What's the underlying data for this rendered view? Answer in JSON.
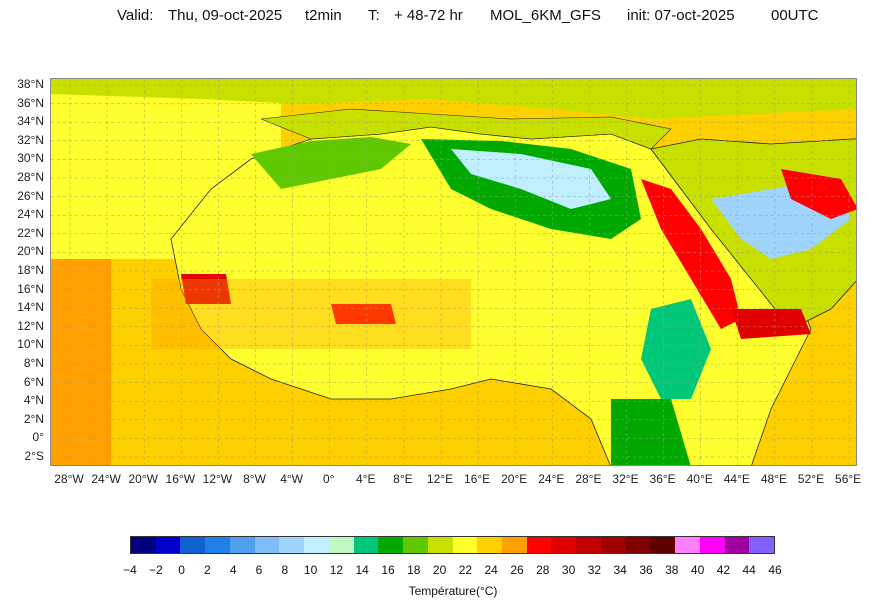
{
  "header": {
    "valid_label": "Valid:",
    "valid_date": "Thu, 09-oct-2025",
    "variable": "t2min",
    "t_label": "T:",
    "t_range": "+ 48-72 hr",
    "model": "MOL_6KM_GFS",
    "init": "init: 07-oct-2025",
    "run": "00UTC"
  },
  "lat_labels": [
    "38°N",
    "36°N",
    "34°N",
    "32°N",
    "30°N",
    "28°N",
    "26°N",
    "24°N",
    "22°N",
    "20°N",
    "18°N",
    "16°N",
    "14°N",
    "12°N",
    "10°N",
    "8°N",
    "6°N",
    "4°N",
    "2°N",
    "0°",
    "2°S"
  ],
  "lon_labels": [
    "28°W",
    "24°W",
    "20°W",
    "16°W",
    "12°W",
    "8°W",
    "4°W",
    "0°",
    "4°E",
    "8°E",
    "12°E",
    "16°E",
    "20°E",
    "24°E",
    "28°E",
    "32°E",
    "36°E",
    "40°E",
    "44°E",
    "48°E",
    "52°E",
    "56°E"
  ],
  "colorbar": {
    "title": "Température(°C)",
    "ticks": [
      "−4",
      "−2",
      "0",
      "2",
      "4",
      "6",
      "8",
      "10",
      "12",
      "14",
      "16",
      "18",
      "20",
      "22",
      "24",
      "26",
      "28",
      "30",
      "32",
      "34",
      "36",
      "38",
      "40",
      "42",
      "44",
      "46"
    ],
    "colors": [
      "#000080",
      "#0000c8",
      "#1060d0",
      "#2080e8",
      "#50a0f0",
      "#80bcf8",
      "#a0d4fc",
      "#c0f0ff",
      "#c0f8c0",
      "#00c878",
      "#00a800",
      "#60c800",
      "#c8e000",
      "#ffff30",
      "#ffd000",
      "#ffa000",
      "#ff0000",
      "#e00000",
      "#c00000",
      "#a00000",
      "#800000",
      "#600000",
      "#ff80ff",
      "#ff00ff",
      "#a000a0",
      "#8060ff"
    ]
  }
}
